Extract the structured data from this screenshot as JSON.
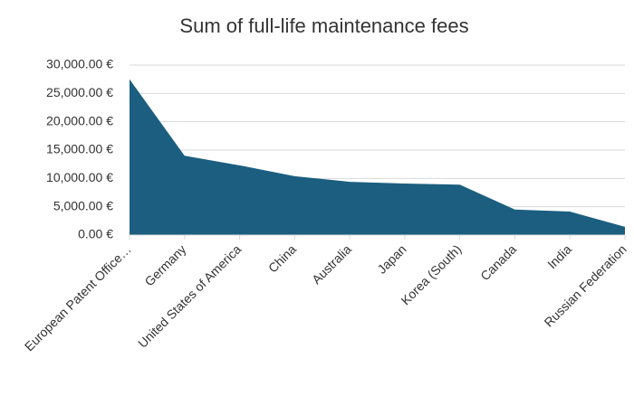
{
  "chart_data": {
    "type": "area",
    "title": "Sum of full-life maintenance fees",
    "categories": [
      "European Patent Office…",
      "Germany",
      "United States of America",
      "China",
      "Australia",
      "Japan",
      "Korea (South)",
      "Canada",
      "India",
      "Russian Federation"
    ],
    "values": [
      27500,
      14000,
      12300,
      10400,
      9400,
      9100,
      8900,
      4500,
      4150,
      1450
    ],
    "color": "#1b5e80",
    "ylim": [
      0,
      30000
    ],
    "yticks": [
      {
        "value": 0,
        "label": "0.00 €"
      },
      {
        "value": 5000,
        "label": "5,000.00 €"
      },
      {
        "value": 10000,
        "label": "10,000.00 €"
      },
      {
        "value": 15000,
        "label": "15,000.00 €"
      },
      {
        "value": 20000,
        "label": "20,000.00 €"
      },
      {
        "value": 25000,
        "label": "25,000.00 €"
      },
      {
        "value": 30000,
        "label": "30,000.00 €"
      }
    ],
    "grid": true
  }
}
